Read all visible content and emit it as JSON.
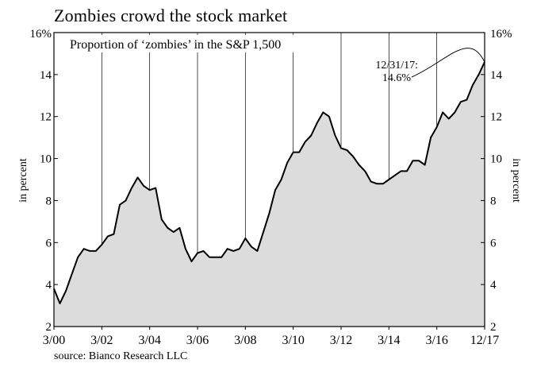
{
  "header": {
    "title": "Zombies crowd the stock market"
  },
  "footer": {
    "source": "source: Bianco Research LLC"
  },
  "colors": {
    "area_fill": "#dcdcdc",
    "line": "#000000",
    "grid": "#000000"
  },
  "chart_data": {
    "type": "area",
    "title": "Zombies crowd the stock market",
    "subtitle": "Proportion of ‘zombies’ in the S&P 1,500",
    "ylabel_left": "in percent",
    "ylabel_right": "in percent",
    "xlabel": "",
    "ylim": [
      2,
      16
    ],
    "xlim": [
      2000.0,
      2018.0
    ],
    "grid": "vertical",
    "y_ticks": [
      2,
      4,
      6,
      8,
      10,
      12,
      14,
      16
    ],
    "y_tick_labels": [
      "2",
      "4",
      "6",
      "8",
      "10",
      "12",
      "14",
      "16%"
    ],
    "x_ticks": [
      {
        "label": "3/00",
        "x": 2000.0
      },
      {
        "label": "3/02",
        "x": 2002.0
      },
      {
        "label": "3/04",
        "x": 2004.0
      },
      {
        "label": "3/06",
        "x": 2006.0
      },
      {
        "label": "3/08",
        "x": 2008.0
      },
      {
        "label": "3/10",
        "x": 2010.0
      },
      {
        "label": "3/12",
        "x": 2012.0
      },
      {
        "label": "3/14",
        "x": 2014.0
      },
      {
        "label": "3/16",
        "x": 2016.0
      },
      {
        "label": "12/17",
        "x": 2018.0
      }
    ],
    "annotation": {
      "date_label": "12/31/17:",
      "value_label": "14.6%",
      "x": 2018.0,
      "y": 14.6
    },
    "series": [
      {
        "name": "Proportion of zombies",
        "x": [
          2000.0,
          2000.25,
          2000.5,
          2000.75,
          2001.0,
          2001.25,
          2001.5,
          2001.75,
          2002.0,
          2002.25,
          2002.5,
          2002.75,
          2003.0,
          2003.25,
          2003.5,
          2003.75,
          2004.0,
          2004.25,
          2004.5,
          2004.75,
          2005.0,
          2005.25,
          2005.5,
          2005.75,
          2006.0,
          2006.25,
          2006.5,
          2006.75,
          2007.0,
          2007.25,
          2007.5,
          2007.75,
          2008.0,
          2008.25,
          2008.5,
          2008.75,
          2009.0,
          2009.25,
          2009.5,
          2009.75,
          2010.0,
          2010.25,
          2010.5,
          2010.75,
          2011.0,
          2011.25,
          2011.5,
          2011.75,
          2012.0,
          2012.25,
          2012.5,
          2012.75,
          2013.0,
          2013.25,
          2013.5,
          2013.75,
          2014.0,
          2014.25,
          2014.5,
          2014.75,
          2015.0,
          2015.25,
          2015.5,
          2015.75,
          2016.0,
          2016.25,
          2016.5,
          2016.75,
          2017.0,
          2017.25,
          2017.5,
          2017.75,
          2018.0
        ],
        "values": [
          3.8,
          3.1,
          3.7,
          4.5,
          5.3,
          5.7,
          5.6,
          5.6,
          5.9,
          6.3,
          6.4,
          7.8,
          8.0,
          8.6,
          9.1,
          8.7,
          8.5,
          8.6,
          7.1,
          6.7,
          6.5,
          6.7,
          5.7,
          5.1,
          5.5,
          5.6,
          5.3,
          5.3,
          5.3,
          5.7,
          5.6,
          5.7,
          6.2,
          5.8,
          5.6,
          6.5,
          7.4,
          8.5,
          9.0,
          9.8,
          10.3,
          10.3,
          10.8,
          11.1,
          11.7,
          12.2,
          12.0,
          11.1,
          10.5,
          10.4,
          10.1,
          9.7,
          9.4,
          8.9,
          8.8,
          8.8,
          9.0,
          9.2,
          9.4,
          9.4,
          9.9,
          9.9,
          9.7,
          11.0,
          11.5,
          12.2,
          11.9,
          12.2,
          12.7,
          12.8,
          13.5,
          14.0,
          14.6
        ]
      }
    ]
  }
}
